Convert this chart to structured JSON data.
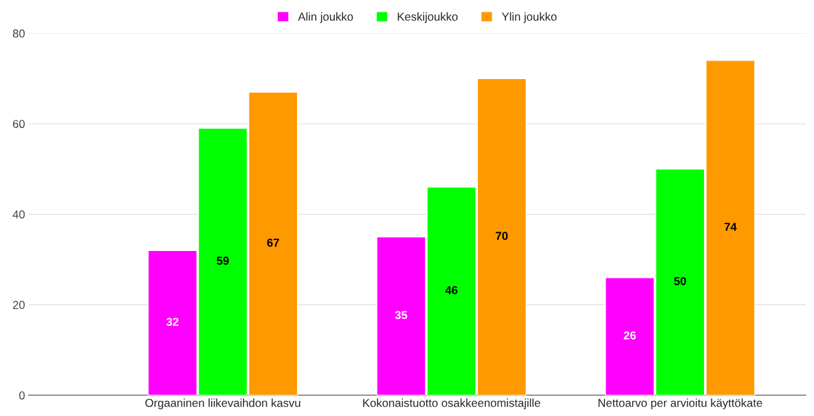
{
  "chart_data": {
    "type": "bar",
    "categories": [
      "Orgaaninen liikevaihdon kasvu",
      "Kokonaistuotto osakkeenomistajille",
      "Nettoarvo per arvioitu käyttökate"
    ],
    "series": [
      {
        "name": "Alin joukko",
        "color": "#ff00ff",
        "values": [
          32,
          35,
          26
        ]
      },
      {
        "name": "Keskijoukko",
        "color": "#00ff00",
        "values": [
          59,
          46,
          50
        ]
      },
      {
        "name": "Ylin joukko",
        "color": "#ff9900",
        "values": [
          67,
          70,
          74
        ]
      }
    ],
    "ylim": [
      0,
      80
    ],
    "yticks": [
      0,
      20,
      40,
      60,
      80
    ],
    "grid": "y",
    "legend": "top",
    "data_labels": true
  }
}
